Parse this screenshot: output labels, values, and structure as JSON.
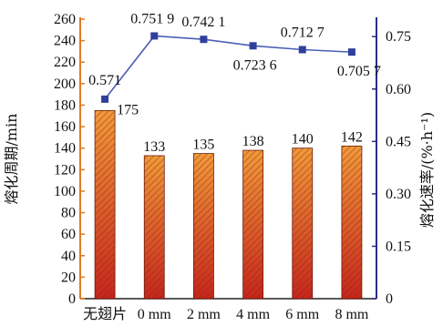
{
  "chart_data": {
    "type": "bar",
    "categories": [
      "无翅片",
      "0 mm",
      "2 mm",
      "4 mm",
      "6 mm",
      "8 mm"
    ],
    "series": [
      {
        "type": "bar",
        "axis": "left",
        "values": [
          175,
          133,
          135,
          138,
          140,
          142
        ],
        "labels": [
          "175",
          "133",
          "135",
          "138",
          "140",
          "142"
        ]
      },
      {
        "type": "line",
        "axis": "right",
        "values": [
          0.571,
          0.7519,
          0.7421,
          0.7236,
          0.7127,
          0.7057
        ],
        "labels": [
          "0.571",
          "0.751 9",
          "0.742 1",
          "0.723 6",
          "0.712 7",
          "0.705 7"
        ]
      }
    ],
    "ylabel": "熔化周期/min",
    "y2label": "熔化速率/(%·h⁻¹)",
    "ylim": [
      0,
      260
    ],
    "y2lim": [
      0,
      0.8
    ],
    "yticks": [
      "0",
      "20",
      "40",
      "60",
      "80",
      "100",
      "120",
      "140",
      "160",
      "180",
      "200",
      "220",
      "240",
      "260"
    ],
    "y2ticks": [
      "0",
      "0.15",
      "0.30",
      "0.45",
      "0.60",
      "0.75"
    ],
    "colors": {
      "left_axis": "#e07a22",
      "right_axis": "#2c2e86",
      "bar_top": "#f29a3a",
      "bar_bottom": "#c7251c",
      "bar_hatch": "#7a2a10",
      "line": "#4a5fb5",
      "marker": "#2f3f9a"
    }
  }
}
